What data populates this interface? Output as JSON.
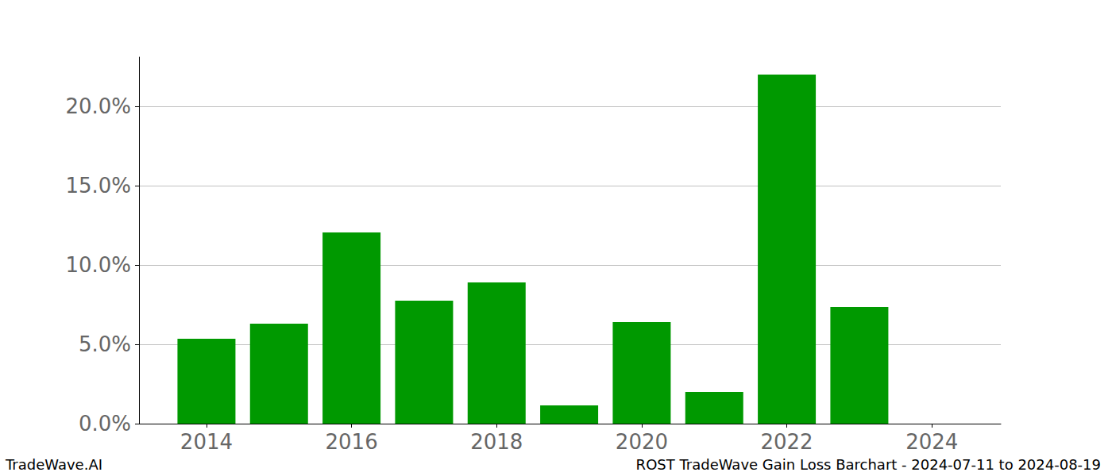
{
  "chart_data": {
    "type": "bar",
    "title": "ROST TradeWave Gain Loss Barchart - 2024-07-11 to 2024-08-19",
    "source": "TradeWave.AI",
    "x": [
      2014,
      2015,
      2016,
      2017,
      2018,
      2019,
      2020,
      2021,
      2022,
      2023,
      2024
    ],
    "values": [
      5.35,
      6.3,
      12.05,
      7.75,
      8.9,
      1.15,
      6.4,
      2.0,
      22.0,
      7.35,
      0
    ],
    "color": "#009900",
    "xlim": [
      2013.07,
      2024.95
    ],
    "xticks": [
      2014,
      2016,
      2018,
      2020,
      2022,
      2024
    ],
    "ylim": [
      0,
      23.1
    ],
    "yticks": [
      {
        "value": 0,
        "label": "0.0%"
      },
      {
        "value": 5,
        "label": "5.0%"
      },
      {
        "value": 10,
        "label": "10.0%"
      },
      {
        "value": 15,
        "label": "15.0%"
      },
      {
        "value": 20,
        "label": "20.0%"
      }
    ],
    "grid": true
  }
}
